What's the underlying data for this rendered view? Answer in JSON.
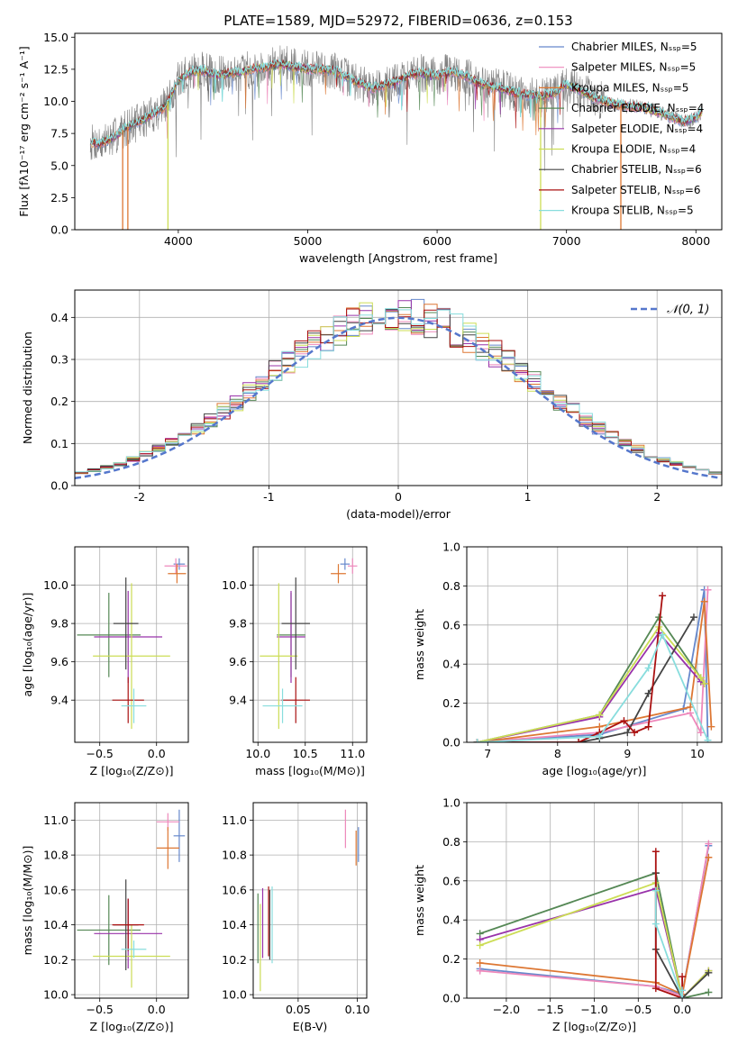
{
  "chart_data": [
    {
      "id": "spectrum",
      "type": "line",
      "title": "PLATE=1589, MJD=52972, FIBERID=0636, z=0.153",
      "xlabel": "wavelength [Angstrom, rest frame]",
      "ylabel": "Flux [fλ10⁻¹⁷ erg cm⁻² s⁻¹ A⁻¹]",
      "xlim": [
        3200,
        8200
      ],
      "ylim": [
        0,
        15.3
      ],
      "xticks": [
        4000,
        5000,
        6000,
        7000,
        8000
      ],
      "yticks": [
        0.0,
        2.5,
        5.0,
        7.5,
        10.0,
        12.5,
        15.0
      ],
      "legend_position": "right",
      "legend": [
        {
          "label": "Chabrier MILES, Nₛₛₚ=5",
          "color": "#6688cc"
        },
        {
          "label": "Salpeter MILES, Nₛₛₚ=5",
          "color": "#ee88bb"
        },
        {
          "label": "Kroupa MILES, Nₛₛₚ=5",
          "color": "#dd7733"
        },
        {
          "label": "Chabrier ELODIE, Nₛₛₚ=4",
          "color": "#558855"
        },
        {
          "label": "Salpeter ELODIE, Nₛₛₚ=4",
          "color": "#9933aa"
        },
        {
          "label": "Kroupa ELODIE, Nₛₛₚ=4",
          "color": "#ccdd55"
        },
        {
          "label": "Chabrier STELIB, Nₛₛₚ=6",
          "color": "#444444"
        },
        {
          "label": "Salpeter STELIB, Nₛₛₚ=6",
          "color": "#aa1111"
        },
        {
          "label": "Kroupa STELIB, Nₛₛₚ=5",
          "color": "#88dddd"
        }
      ],
      "data_envelope": {
        "x": [
          3320,
          3400,
          3500,
          3600,
          3700,
          3800,
          3900,
          4000,
          4100,
          4200,
          4300,
          4400,
          4500,
          4600,
          4700,
          4800,
          4900,
          5000,
          5100,
          5200,
          5300,
          5400,
          5500,
          5600,
          5700,
          5800,
          5900,
          6000,
          6100,
          6200,
          6300,
          6400,
          6500,
          6600,
          6700,
          6800,
          6900,
          7000,
          7100,
          7200,
          7300,
          7400,
          7500,
          7600,
          7700,
          7800,
          7900,
          8000,
          8050
        ],
        "y": [
          6.8,
          6.7,
          7.2,
          8.0,
          8.4,
          9.0,
          9.6,
          11.6,
          12.3,
          12.4,
          12.0,
          12.2,
          12.3,
          12.6,
          12.7,
          12.9,
          12.7,
          12.5,
          12.5,
          12.4,
          11.9,
          11.4,
          11.0,
          11.3,
          11.6,
          12.1,
          12.2,
          12.0,
          12.3,
          12.1,
          11.5,
          11.2,
          11.0,
          10.7,
          10.5,
          10.4,
          10.6,
          11.3,
          10.9,
          10.3,
          10.0,
          9.7,
          9.6,
          9.5,
          9.2,
          8.8,
          8.4,
          8.7,
          9.2
        ]
      },
      "model_spikes": [
        {
          "x": 3570,
          "y": 0.0
        },
        {
          "x": 3610,
          "y": 0.0
        },
        {
          "x": 3920,
          "y": 0.0
        },
        {
          "x": 6800,
          "y": 0.0
        },
        {
          "x": 7420,
          "y": 0.0
        }
      ]
    },
    {
      "id": "residuals",
      "type": "line",
      "xlabel": "(data-model)/error",
      "ylabel": "Normed distribution",
      "xlim": [
        -2.5,
        2.5
      ],
      "ylim": [
        0,
        0.465
      ],
      "xticks": [
        -2,
        -1,
        0,
        1,
        2
      ],
      "yticks": [
        0.0,
        0.1,
        0.2,
        0.3,
        0.4
      ],
      "legend_position": "top-right",
      "legend_label": "𝒩(0, 1)",
      "gaussian_color": "#5577cc",
      "grid": true
    },
    {
      "id": "age-vs-Z",
      "type": "scatter",
      "xlabel": "Z [log₁₀(Z/Z⊙)]",
      "ylabel": "age  [log₁₀(age/yr)]",
      "xlim": [
        -0.72,
        0.28
      ],
      "ylim": [
        9.18,
        10.2
      ],
      "xticks": [
        -0.5,
        0.0
      ],
      "xticklabels": [
        "−0.5",
        "0.0"
      ],
      "yticks": [
        9.4,
        9.6,
        9.8,
        10.0
      ],
      "grid": true,
      "points": [
        {
          "color": "#6688cc",
          "x": 0.2,
          "y": 10.11,
          "xerr": 0.05,
          "yerr": 0.03
        },
        {
          "color": "#ee88bb",
          "x": 0.17,
          "y": 10.1,
          "xerr": 0.1,
          "yerr": 0.04
        },
        {
          "color": "#dd7733",
          "x": 0.18,
          "y": 10.06,
          "xerr": 0.08,
          "yerr": 0.05
        },
        {
          "color": "#558855",
          "x": -0.42,
          "y": 9.74,
          "xerr": 0.28,
          "yerr": 0.22
        },
        {
          "color": "#9933aa",
          "x": -0.25,
          "y": 9.73,
          "xerr": 0.3,
          "yerr": 0.24
        },
        {
          "color": "#ccdd55",
          "x": -0.22,
          "y": 9.63,
          "xerr": 0.34,
          "yerr": 0.38
        },
        {
          "color": "#444444",
          "x": -0.27,
          "y": 9.8,
          "xerr": 0.11,
          "yerr": 0.24
        },
        {
          "color": "#aa1111",
          "x": -0.25,
          "y": 9.4,
          "xerr": 0.14,
          "yerr": 0.12
        },
        {
          "color": "#88dddd",
          "x": -0.2,
          "y": 9.37,
          "xerr": 0.11,
          "yerr": 0.09
        }
      ]
    },
    {
      "id": "age-vs-mass",
      "type": "scatter",
      "xlabel": "mass [log₁₀(M/M⊙)]",
      "ylabel": "",
      "xlim": [
        9.95,
        11.15
      ],
      "ylim": [
        9.18,
        10.2
      ],
      "xticks": [
        10.0,
        10.5,
        11.0
      ],
      "xticklabels": [
        "10.0",
        "10.5",
        "11.0"
      ],
      "yticks": [
        9.4,
        9.6,
        9.8,
        10.0
      ],
      "grid": true,
      "points": [
        {
          "color": "#6688cc",
          "x": 10.92,
          "y": 10.11,
          "xerr": 0.05,
          "yerr": 0.03
        },
        {
          "color": "#ee88bb",
          "x": 11.0,
          "y": 10.1,
          "xerr": 0.05,
          "yerr": 0.04
        },
        {
          "color": "#dd7733",
          "x": 10.85,
          "y": 10.06,
          "xerr": 0.08,
          "yerr": 0.05
        },
        {
          "color": "#558855",
          "x": 10.35,
          "y": 9.74,
          "xerr": 0.15,
          "yerr": 0.22
        },
        {
          "color": "#9933aa",
          "x": 10.35,
          "y": 9.73,
          "xerr": 0.15,
          "yerr": 0.24
        },
        {
          "color": "#ccdd55",
          "x": 10.22,
          "y": 9.63,
          "xerr": 0.2,
          "yerr": 0.38
        },
        {
          "color": "#444444",
          "x": 10.4,
          "y": 9.8,
          "xerr": 0.15,
          "yerr": 0.24
        },
        {
          "color": "#aa1111",
          "x": 10.4,
          "y": 9.4,
          "xerr": 0.15,
          "yerr": 0.12
        },
        {
          "color": "#88dddd",
          "x": 10.26,
          "y": 9.37,
          "xerr": 0.21,
          "yerr": 0.09
        }
      ]
    },
    {
      "id": "weight-vs-age",
      "type": "line",
      "xlabel": "age  [log₁₀(age/yr)]",
      "ylabel": "mass weight",
      "xlim": [
        6.7,
        10.35
      ],
      "ylim": [
        0,
        1.0
      ],
      "xticks": [
        7,
        8,
        9,
        10
      ],
      "yticks": [
        0.0,
        0.2,
        0.4,
        0.6,
        0.8,
        1.0
      ],
      "grid": true,
      "series": [
        {
          "color": "#6688cc",
          "x": [
            6.85,
            8.6,
            9.8,
            10.1,
            10.15
          ],
          "y": [
            0.0,
            0.04,
            0.17,
            0.78,
            0.01
          ]
        },
        {
          "color": "#ee88bb",
          "x": [
            6.85,
            8.6,
            9.9,
            10.05,
            10.15
          ],
          "y": [
            0.0,
            0.05,
            0.15,
            0.05,
            0.78
          ]
        },
        {
          "color": "#dd7733",
          "x": [
            6.85,
            8.6,
            9.9,
            10.1,
            10.2
          ],
          "y": [
            0.0,
            0.08,
            0.18,
            0.72,
            0.08
          ]
        },
        {
          "color": "#558855",
          "x": [
            6.85,
            8.6,
            9.45,
            10.05,
            10.1
          ],
          "y": [
            0.0,
            0.14,
            0.64,
            0.33,
            0.3
          ]
        },
        {
          "color": "#9933aa",
          "x": [
            6.85,
            8.6,
            9.45,
            10.05,
            10.1
          ],
          "y": [
            0.0,
            0.13,
            0.56,
            0.31,
            0.3
          ]
        },
        {
          "color": "#ccdd55",
          "x": [
            6.85,
            8.6,
            9.45,
            10.05,
            10.1
          ],
          "y": [
            0.0,
            0.14,
            0.59,
            0.33,
            0.3
          ]
        },
        {
          "color": "#444444",
          "x": [
            6.85,
            8.3,
            8.6,
            9.0,
            9.3,
            9.95
          ],
          "y": [
            0.0,
            0.0,
            0.02,
            0.05,
            0.25,
            0.64
          ]
        },
        {
          "color": "#aa1111",
          "x": [
            6.85,
            8.3,
            8.6,
            8.95,
            9.1,
            9.3,
            9.5
          ],
          "y": [
            0.0,
            0.0,
            0.05,
            0.11,
            0.05,
            0.08,
            0.75
          ]
        },
        {
          "color": "#88dddd",
          "x": [
            6.85,
            8.6,
            9.3,
            9.5,
            10.15
          ],
          "y": [
            0.0,
            0.03,
            0.38,
            0.55,
            0.01
          ]
        }
      ]
    },
    {
      "id": "mass-vs-Z",
      "type": "scatter",
      "xlabel": "Z [log₁₀(Z/Z⊙)]",
      "ylabel": "mass [log₁₀(M/M⊙)]",
      "xlim": [
        -0.72,
        0.28
      ],
      "ylim": [
        9.98,
        11.1
      ],
      "xticks": [
        -0.5,
        0.0
      ],
      "xticklabels": [
        "−0.5",
        "0.0"
      ],
      "yticks": [
        10.0,
        10.2,
        10.4,
        10.6,
        10.8,
        11.0
      ],
      "grid": true,
      "points": [
        {
          "color": "#6688cc",
          "x": 0.2,
          "y": 10.91,
          "xerr": 0.05,
          "yerr": 0.15
        },
        {
          "color": "#ee88bb",
          "x": 0.1,
          "y": 10.99,
          "xerr": 0.1,
          "yerr": 0.05
        },
        {
          "color": "#dd7733",
          "x": 0.1,
          "y": 10.84,
          "xerr": 0.1,
          "yerr": 0.12
        },
        {
          "color": "#558855",
          "x": -0.42,
          "y": 10.37,
          "xerr": 0.28,
          "yerr": 0.2
        },
        {
          "color": "#9933aa",
          "x": -0.25,
          "y": 10.35,
          "xerr": 0.3,
          "yerr": 0.2
        },
        {
          "color": "#ccdd55",
          "x": -0.22,
          "y": 10.22,
          "xerr": 0.34,
          "yerr": 0.18
        },
        {
          "color": "#444444",
          "x": -0.27,
          "y": 10.4,
          "xerr": 0.11,
          "yerr": 0.26
        },
        {
          "color": "#aa1111",
          "x": -0.25,
          "y": 10.4,
          "xerr": 0.14,
          "yerr": 0.15
        },
        {
          "color": "#88dddd",
          "x": -0.2,
          "y": 10.26,
          "xerr": 0.11,
          "yerr": 0.05
        }
      ]
    },
    {
      "id": "mass-vs-ebv",
      "type": "scatter",
      "xlabel": "E(B-V)",
      "ylabel": "",
      "xlim": [
        0.012,
        0.108
      ],
      "ylim": [
        9.98,
        11.1
      ],
      "xticks": [
        0.05,
        0.1
      ],
      "xticklabels": [
        "0.05",
        "0.10"
      ],
      "yticks": [
        10.0,
        10.2,
        10.4,
        10.6,
        10.8,
        11.0
      ],
      "grid": true,
      "points": [
        {
          "color": "#6688cc",
          "x": 0.101,
          "y": 10.86,
          "xerr": 0,
          "yerr": 0.1
        },
        {
          "color": "#ee88bb",
          "x": 0.09,
          "y": 10.95,
          "xerr": 0,
          "yerr": 0.11
        },
        {
          "color": "#dd7733",
          "x": 0.099,
          "y": 10.84,
          "xerr": 0,
          "yerr": 0.1
        },
        {
          "color": "#558855",
          "x": 0.016,
          "y": 10.38,
          "xerr": 0,
          "yerr": 0.2
        },
        {
          "color": "#9933aa",
          "x": 0.02,
          "y": 10.41,
          "xerr": 0,
          "yerr": 0.2
        },
        {
          "color": "#ccdd55",
          "x": 0.018,
          "y": 10.27,
          "xerr": 0,
          "yerr": 0.25
        },
        {
          "color": "#444444",
          "x": 0.026,
          "y": 10.4,
          "xerr": 0,
          "yerr": 0.2
        },
        {
          "color": "#aa1111",
          "x": 0.025,
          "y": 10.42,
          "xerr": 0,
          "yerr": 0.2
        },
        {
          "color": "#88dddd",
          "x": 0.028,
          "y": 10.4,
          "xerr": 0,
          "yerr": 0.22
        }
      ]
    },
    {
      "id": "weight-vs-Z",
      "type": "line",
      "xlabel": "Z [log₁₀(Z/Z⊙)]",
      "ylabel": "mass weight",
      "xlim": [
        -2.45,
        0.45
      ],
      "ylim": [
        0,
        1.0
      ],
      "xticks": [
        -2.0,
        -1.5,
        -1.0,
        -0.5,
        0.0
      ],
      "xticklabels": [
        "−2.0",
        "−1.5",
        "−1.0",
        "−0.5",
        "0.0"
      ],
      "yticks": [
        0.0,
        0.2,
        0.4,
        0.6,
        0.8,
        1.0
      ],
      "grid": true,
      "series": [
        {
          "color": "#6688cc",
          "x": [
            -2.3,
            -0.3,
            0.0,
            0.3
          ],
          "y": [
            0.15,
            0.06,
            0.02,
            0.78
          ]
        },
        {
          "color": "#ee88bb",
          "x": [
            -2.3,
            -0.3,
            0.0,
            0.3
          ],
          "y": [
            0.14,
            0.06,
            0.01,
            0.79
          ]
        },
        {
          "color": "#dd7733",
          "x": [
            -2.3,
            -0.3,
            0.0,
            0.3
          ],
          "y": [
            0.18,
            0.08,
            0.02,
            0.72
          ]
        },
        {
          "color": "#558855",
          "x": [
            -2.3,
            -0.3,
            0.0,
            0.3
          ],
          "y": [
            0.33,
            0.64,
            0.0,
            0.03
          ]
        },
        {
          "color": "#9933aa",
          "x": [
            -2.3,
            -0.3,
            0.0,
            0.3
          ],
          "y": [
            0.3,
            0.56,
            0.0,
            0.14
          ]
        },
        {
          "color": "#ccdd55",
          "x": [
            -2.3,
            -0.3,
            0.0,
            0.3
          ],
          "y": [
            0.27,
            0.59,
            0.0,
            0.14
          ]
        },
        {
          "color": "#444444",
          "x": [
            -0.3,
            -0.3,
            0.0,
            0.3
          ],
          "y": [
            0.64,
            0.25,
            0.0,
            0.13
          ]
        },
        {
          "color": "#aa1111",
          "x": [
            -0.3,
            -0.3,
            0.0,
            0.0
          ],
          "y": [
            0.75,
            0.05,
            0.0,
            0.11
          ]
        },
        {
          "color": "#88dddd",
          "x": [
            -0.3,
            -0.3,
            0.0,
            0.0
          ],
          "y": [
            0.55,
            0.38,
            0.0,
            0.04
          ]
        }
      ]
    }
  ]
}
